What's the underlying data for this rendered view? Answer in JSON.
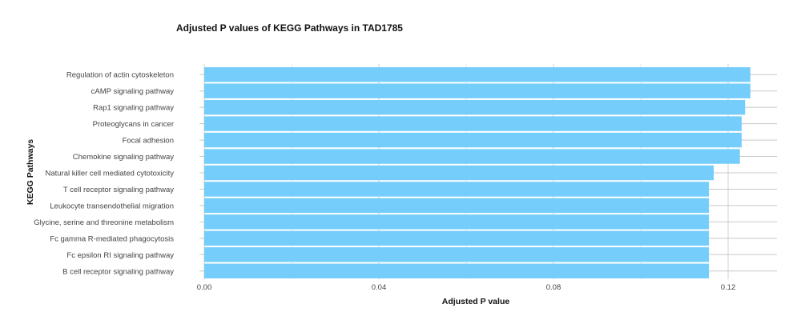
{
  "chart_data": {
    "type": "bar",
    "orientation": "horizontal",
    "title": "Adjusted P values of KEGG Pathways in TAD1785",
    "xlabel": "Adjusted P value",
    "ylabel": "KEGG Pathways",
    "xlim": [
      0,
      0.131
    ],
    "xticks": [
      0.0,
      0.04,
      0.08,
      0.12
    ],
    "xtick_labels": [
      "0.00",
      "0.04",
      "0.08",
      "0.12"
    ],
    "grid": true,
    "bar_color": "#74CDFB",
    "categories": [
      "Regulation of actin cytoskeleton",
      "cAMP signaling pathway",
      "Rap1 signaling pathway",
      "Proteoglycans in cancer",
      "Focal adhesion",
      "Chemokine signaling pathway",
      "Natural killer cell mediated cytotoxicity",
      "T cell receptor signaling pathway",
      "Leukocyte transendothelial migration",
      "Glycine, serine and threonine metabolism",
      "Fc gamma R-mediated phagocytosis",
      "Fc epsilon RI signaling pathway",
      "B cell receptor signaling pathway"
    ],
    "values": [
      0.1251,
      0.1251,
      0.1239,
      0.1231,
      0.1231,
      0.1227,
      0.1167,
      0.1156,
      0.1156,
      0.1156,
      0.1156,
      0.1156,
      0.1156
    ]
  }
}
